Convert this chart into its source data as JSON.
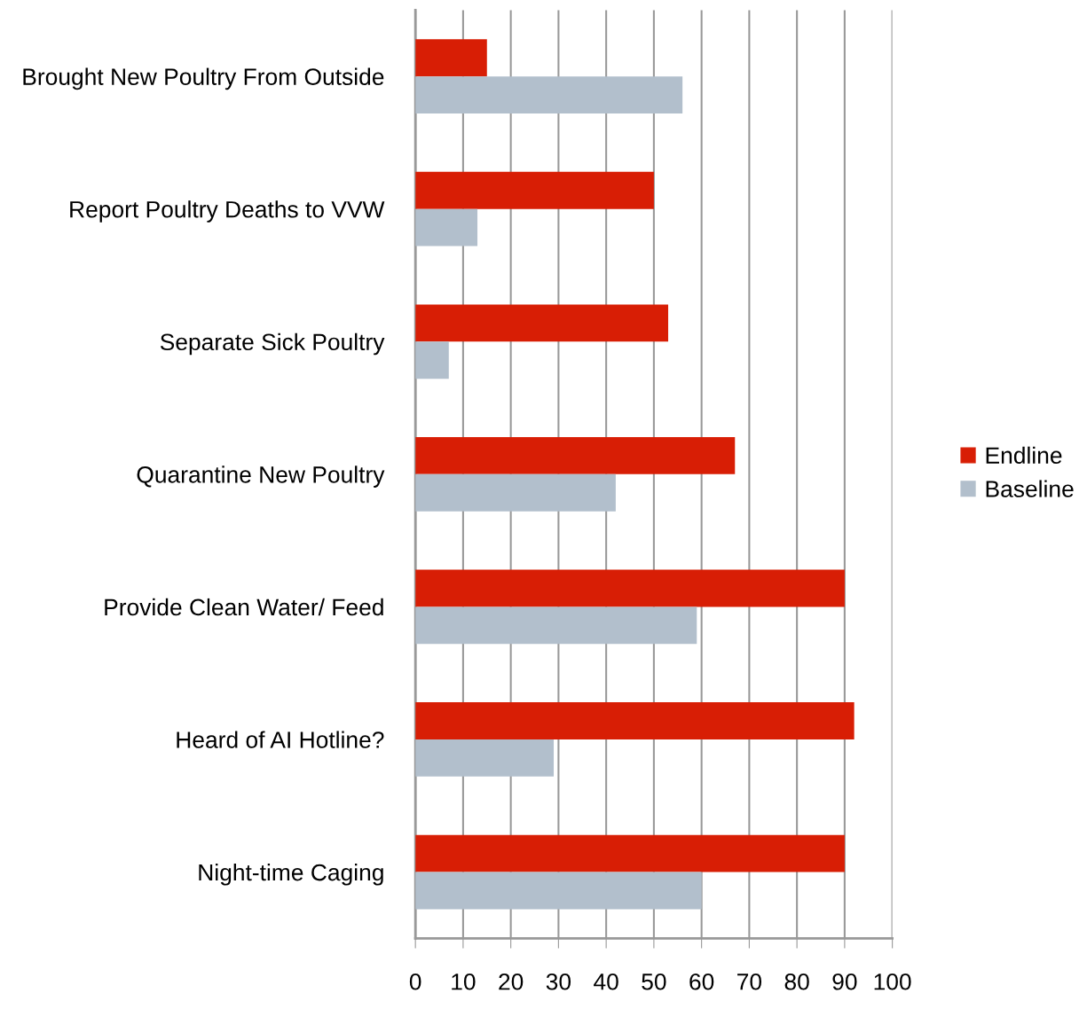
{
  "chart_data": {
    "type": "bar",
    "orientation": "horizontal",
    "categories": [
      "Brought New Poultry From Outside",
      "Report Poultry Deaths to VVW",
      "Separate Sick Poultry",
      "Quarantine New Poultry",
      "Provide Clean Water/ Feed",
      "Heard of AI Hotline?",
      "Night-time Caging"
    ],
    "series": [
      {
        "name": "Endline",
        "color": "#d81e05",
        "values": [
          15,
          50,
          53,
          67,
          90,
          92,
          90
        ]
      },
      {
        "name": "Baseline",
        "color": "#b2bfcc",
        "values": [
          56,
          13,
          7,
          42,
          59,
          29,
          60
        ]
      }
    ],
    "xlim": [
      0,
      100
    ],
    "xticks": [
      0,
      10,
      20,
      30,
      40,
      50,
      60,
      70,
      80,
      90,
      100
    ],
    "grid": "x",
    "legend": "right"
  }
}
